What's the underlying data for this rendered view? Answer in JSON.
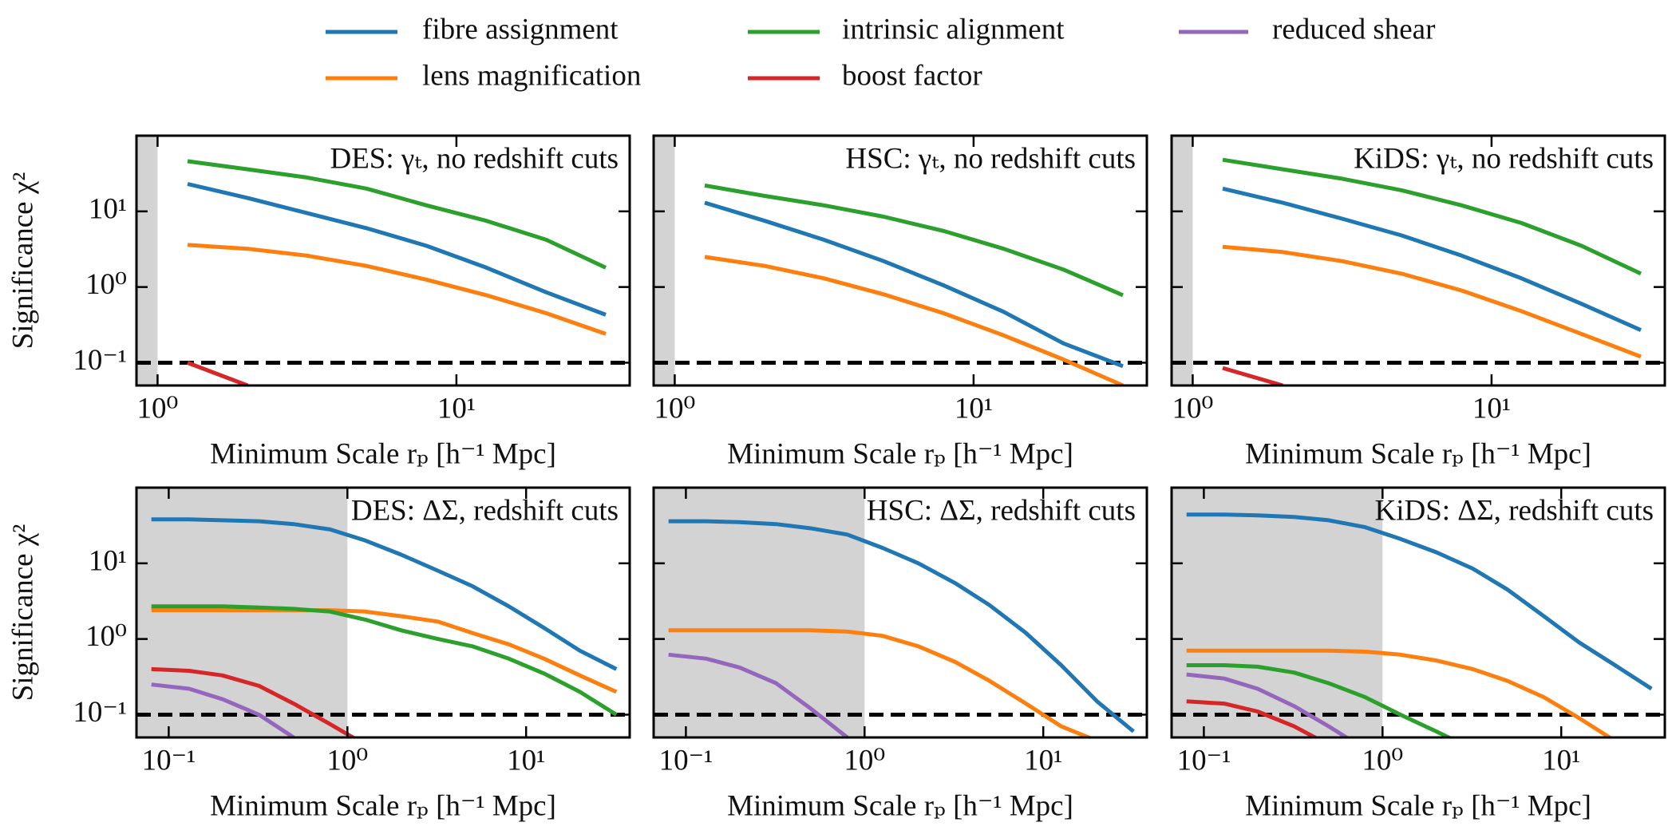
{
  "chart_data": [
    {
      "type": "line",
      "title": "DES: γₜ, no redshift cuts",
      "xlabel": "Minimum Scale rₚ [h⁻¹ Mpc]",
      "ylabel": "Significance χ²",
      "xlog": true,
      "ylog": true,
      "xlim": [
        0.85,
        38
      ],
      "ylim": [
        0.05,
        100
      ],
      "xticks": [
        {
          "value": 1,
          "label": "10⁰"
        },
        {
          "value": 10,
          "label": "10¹"
        }
      ],
      "yticks": [
        {
          "value": 0.1,
          "label": "10⁻¹"
        },
        {
          "value": 1,
          "label": "10⁰"
        },
        {
          "value": 10,
          "label": "10¹"
        }
      ],
      "shade_xmax": 1,
      "hline": 0.1,
      "x": [
        1.26,
        2.0,
        3.16,
        5.0,
        7.94,
        12.6,
        20.0,
        31.6
      ],
      "series": [
        {
          "name": "fibre assignment",
          "color": "#1f77b4",
          "values": [
            23,
            15,
            9.5,
            6,
            3.5,
            1.8,
            0.85,
            0.43
          ]
        },
        {
          "name": "lens magnification",
          "color": "#ff7f0e",
          "values": [
            3.6,
            3.2,
            2.6,
            1.9,
            1.25,
            0.78,
            0.45,
            0.24
          ]
        },
        {
          "name": "intrinsic alignment",
          "color": "#2ca02c",
          "values": [
            46,
            36,
            28,
            20,
            12,
            7.5,
            4.2,
            1.8
          ]
        },
        {
          "name": "boost factor",
          "color": "#d62728",
          "values": [
            0.1,
            0.05,
            null,
            null,
            null,
            null,
            null,
            null
          ]
        }
      ]
    },
    {
      "type": "line",
      "title": "HSC: γₜ, no redshift cuts",
      "xlabel": "Minimum Scale rₚ [h⁻¹ Mpc]",
      "xlog": true,
      "ylog": true,
      "xlim": [
        0.85,
        38
      ],
      "ylim": [
        0.05,
        100
      ],
      "xticks": [
        {
          "value": 1,
          "label": "10⁰"
        },
        {
          "value": 10,
          "label": "10¹"
        }
      ],
      "shade_xmax": 1,
      "hline": 0.1,
      "x": [
        1.26,
        2.0,
        3.16,
        5.0,
        7.94,
        12.6,
        20.0,
        31.6
      ],
      "series": [
        {
          "name": "fibre assignment",
          "color": "#1f77b4",
          "values": [
            13,
            7.5,
            4.2,
            2.2,
            1.05,
            0.47,
            0.18,
            0.09
          ]
        },
        {
          "name": "lens magnification",
          "color": "#ff7f0e",
          "values": [
            2.5,
            1.9,
            1.3,
            0.8,
            0.45,
            0.23,
            0.11,
            0.05
          ]
        },
        {
          "name": "intrinsic alignment",
          "color": "#2ca02c",
          "values": [
            22,
            16,
            12,
            8.5,
            5.5,
            3.2,
            1.7,
            0.78
          ]
        }
      ]
    },
    {
      "type": "line",
      "title": "KiDS: γₜ, no redshift cuts",
      "xlabel": "Minimum Scale rₚ [h⁻¹ Mpc]",
      "xlog": true,
      "ylog": true,
      "xlim": [
        0.85,
        38
      ],
      "ylim": [
        0.05,
        100
      ],
      "xticks": [
        {
          "value": 1,
          "label": "10⁰"
        },
        {
          "value": 10,
          "label": "10¹"
        }
      ],
      "shade_xmax": 1,
      "hline": 0.1,
      "x": [
        1.26,
        2.0,
        3.16,
        5.0,
        7.94,
        12.6,
        20.0,
        31.6
      ],
      "series": [
        {
          "name": "fibre assignment",
          "color": "#1f77b4",
          "values": [
            20,
            13,
            8,
            4.8,
            2.6,
            1.3,
            0.6,
            0.27
          ]
        },
        {
          "name": "lens magnification",
          "color": "#ff7f0e",
          "values": [
            3.4,
            2.9,
            2.2,
            1.5,
            0.9,
            0.48,
            0.24,
            0.12
          ]
        },
        {
          "name": "intrinsic alignment",
          "color": "#2ca02c",
          "values": [
            48,
            36,
            27,
            19,
            12,
            7,
            3.5,
            1.5
          ]
        },
        {
          "name": "boost factor",
          "color": "#d62728",
          "values": [
            0.085,
            0.05,
            null,
            null,
            null,
            null,
            null,
            null
          ]
        }
      ]
    },
    {
      "type": "line",
      "title": "DES: ΔΣ, redshift cuts",
      "xlabel": "Minimum Scale rₚ [h⁻¹ Mpc]",
      "ylabel": "Significance χ²",
      "xlog": true,
      "ylog": true,
      "xlim": [
        0.066,
        38
      ],
      "ylim": [
        0.05,
        100
      ],
      "xticks": [
        {
          "value": 0.1,
          "label": "10⁻¹"
        },
        {
          "value": 1,
          "label": "10⁰"
        },
        {
          "value": 10,
          "label": "10¹"
        }
      ],
      "yticks": [
        {
          "value": 0.1,
          "label": "10⁻¹"
        },
        {
          "value": 1,
          "label": "10⁰"
        },
        {
          "value": 10,
          "label": "10¹"
        }
      ],
      "shade_xmax": 1,
      "hline": 0.1,
      "x": [
        0.08,
        0.13,
        0.2,
        0.32,
        0.5,
        0.8,
        1.26,
        2.0,
        3.2,
        5.0,
        8.0,
        12.6,
        20.0,
        32.0
      ],
      "series": [
        {
          "name": "fibre assignment",
          "color": "#1f77b4",
          "values": [
            38,
            38,
            37,
            36,
            33,
            28,
            20,
            13,
            8,
            5,
            2.7,
            1.4,
            0.7,
            0.4
          ]
        },
        {
          "name": "lens magnification",
          "color": "#ff7f0e",
          "values": [
            2.4,
            2.4,
            2.4,
            2.4,
            2.4,
            2.4,
            2.3,
            2.0,
            1.7,
            1.2,
            0.85,
            0.55,
            0.33,
            0.2
          ]
        },
        {
          "name": "intrinsic alignment",
          "color": "#2ca02c",
          "values": [
            2.7,
            2.7,
            2.7,
            2.6,
            2.5,
            2.3,
            1.8,
            1.3,
            1.0,
            0.8,
            0.55,
            0.35,
            0.2,
            0.1
          ]
        },
        {
          "name": "boost factor",
          "color": "#d62728",
          "values": [
            0.4,
            0.38,
            0.33,
            0.24,
            0.14,
            0.075,
            0.04,
            null,
            null,
            null,
            null,
            null,
            null,
            null
          ]
        },
        {
          "name": "reduced shear",
          "color": "#9467bd",
          "values": [
            0.25,
            0.22,
            0.16,
            0.1,
            0.05,
            null,
            null,
            null,
            null,
            null,
            null,
            null,
            null,
            null
          ]
        }
      ]
    },
    {
      "type": "line",
      "title": "HSC: ΔΣ, redshift cuts",
      "xlabel": "Minimum Scale rₚ [h⁻¹ Mpc]",
      "xlog": true,
      "ylog": true,
      "xlim": [
        0.066,
        38
      ],
      "ylim": [
        0.05,
        100
      ],
      "xticks": [
        {
          "value": 0.1,
          "label": "10⁻¹"
        },
        {
          "value": 1,
          "label": "10⁰"
        },
        {
          "value": 10,
          "label": "10¹"
        }
      ],
      "shade_xmax": 1,
      "hline": 0.1,
      "x": [
        0.08,
        0.13,
        0.2,
        0.32,
        0.5,
        0.8,
        1.26,
        2.0,
        3.2,
        5.0,
        8.0,
        12.6,
        20.0,
        32.0
      ],
      "series": [
        {
          "name": "fibre assignment",
          "color": "#1f77b4",
          "values": [
            36,
            36,
            35,
            33,
            29,
            24,
            16,
            10,
            5.5,
            2.8,
            1.2,
            0.45,
            0.15,
            0.06
          ]
        },
        {
          "name": "lens magnification",
          "color": "#ff7f0e",
          "values": [
            1.3,
            1.3,
            1.3,
            1.3,
            1.3,
            1.25,
            1.1,
            0.8,
            0.5,
            0.28,
            0.14,
            0.07,
            0.045,
            null
          ]
        },
        {
          "name": "reduced shear",
          "color": "#9467bd",
          "values": [
            0.62,
            0.55,
            0.42,
            0.26,
            0.12,
            0.05,
            null,
            null,
            null,
            null,
            null,
            null,
            null,
            null
          ]
        }
      ]
    },
    {
      "type": "line",
      "title": "KiDS: ΔΣ, redshift cuts",
      "xlabel": "Minimum Scale rₚ [h⁻¹ Mpc]",
      "xlog": true,
      "ylog": true,
      "xlim": [
        0.066,
        38
      ],
      "ylim": [
        0.05,
        100
      ],
      "xticks": [
        {
          "value": 0.1,
          "label": "10⁻¹"
        },
        {
          "value": 1,
          "label": "10⁰"
        },
        {
          "value": 10,
          "label": "10¹"
        }
      ],
      "shade_xmax": 1,
      "hline": 0.1,
      "x": [
        0.08,
        0.13,
        0.2,
        0.32,
        0.5,
        0.8,
        1.26,
        2.0,
        3.2,
        5.0,
        8.0,
        12.6,
        20.0,
        32.0
      ],
      "series": [
        {
          "name": "fibre assignment",
          "color": "#1f77b4",
          "values": [
            44,
            44,
            43,
            41,
            37,
            30,
            21,
            14,
            8.5,
            4.5,
            2.0,
            0.9,
            0.45,
            0.22
          ]
        },
        {
          "name": "lens magnification",
          "color": "#ff7f0e",
          "values": [
            0.7,
            0.7,
            0.7,
            0.7,
            0.7,
            0.68,
            0.62,
            0.52,
            0.4,
            0.28,
            0.17,
            0.09,
            0.045,
            null
          ]
        },
        {
          "name": "intrinsic alignment",
          "color": "#2ca02c",
          "values": [
            0.45,
            0.45,
            0.43,
            0.36,
            0.26,
            0.17,
            0.1,
            0.06,
            0.035,
            null,
            null,
            null,
            null,
            null
          ]
        },
        {
          "name": "boost factor",
          "color": "#d62728",
          "values": [
            0.15,
            0.14,
            0.11,
            0.07,
            0.04,
            null,
            null,
            null,
            null,
            null,
            null,
            null,
            null,
            null
          ]
        },
        {
          "name": "reduced shear",
          "color": "#9467bd",
          "values": [
            0.34,
            0.3,
            0.22,
            0.13,
            0.07,
            0.035,
            null,
            null,
            null,
            null,
            null,
            null,
            null,
            null
          ]
        }
      ]
    }
  ]
}
